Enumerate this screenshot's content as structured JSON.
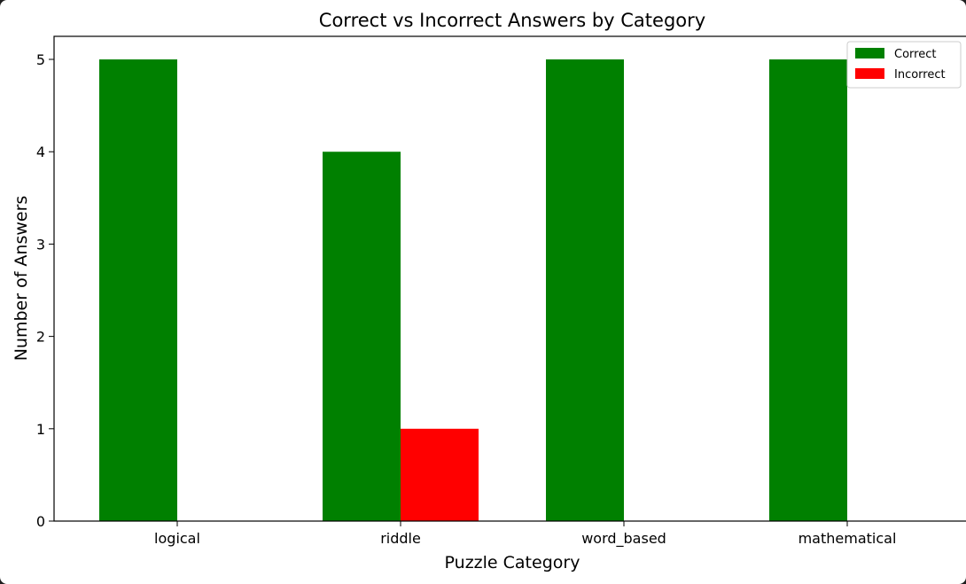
{
  "chart_data": {
    "type": "bar",
    "title": "Correct vs Incorrect Answers by Category",
    "xlabel": "Puzzle Category",
    "ylabel": "Number of Answers",
    "categories": [
      "logical",
      "riddle",
      "word_based",
      "mathematical"
    ],
    "series": [
      {
        "name": "Correct",
        "color": "#008000",
        "values": [
          5,
          4,
          5,
          5
        ]
      },
      {
        "name": "Incorrect",
        "color": "#ff0000",
        "values": [
          0,
          1,
          0,
          0
        ]
      }
    ],
    "ylim": [
      0,
      5.25
    ],
    "yticks": [
      0,
      1,
      2,
      3,
      4,
      5
    ],
    "grid": false,
    "legend_position": "top-right"
  }
}
